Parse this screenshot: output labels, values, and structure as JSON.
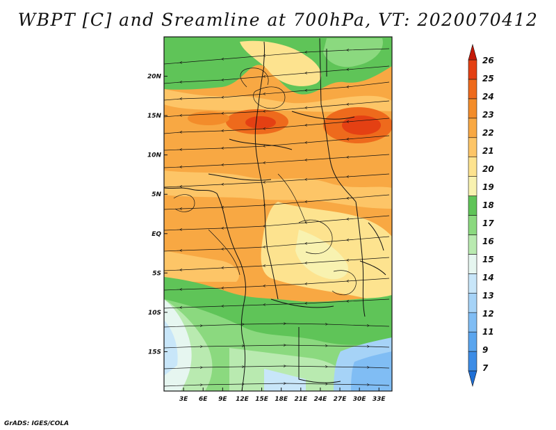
{
  "title": "WBPT [C] and Sreamline at 700hPa, VT: 2020070412",
  "credit": "GrADS: IGES/COLA",
  "map": {
    "lon_range": [
      0,
      35
    ],
    "lat_range": [
      -20,
      25
    ],
    "lon_ticks": [
      "3E",
      "6E",
      "9E",
      "12E",
      "15E",
      "18E",
      "21E",
      "24E",
      "27E",
      "30E",
      "33E"
    ],
    "lon_tick_values": [
      3,
      6,
      9,
      12,
      15,
      18,
      21,
      24,
      27,
      30,
      33
    ],
    "lat_ticks": [
      "20N",
      "15N",
      "10N",
      "5N",
      "EQ",
      "5S",
      "10S",
      "15S"
    ],
    "lat_tick_values": [
      20,
      15,
      10,
      5,
      0,
      -5,
      -10,
      -15
    ]
  },
  "colorbar": {
    "labels": [
      "7",
      "9",
      "11",
      "12",
      "13",
      "14",
      "15",
      "16",
      "17",
      "18",
      "19",
      "20",
      "21",
      "22",
      "23",
      "24",
      "25",
      "26"
    ],
    "colors": [
      "#1e6fd6",
      "#3c8ce6",
      "#5aa5ee",
      "#80bdf4",
      "#a6d3f7",
      "#c8e6f9",
      "#e6f6f0",
      "#b9eab0",
      "#8bd97f",
      "#5fc458",
      "#f8f2b0",
      "#fde38f",
      "#fdc567",
      "#f8a843",
      "#f38c2a",
      "#ee6a1c",
      "#e44013",
      "#c41908"
    ]
  }
}
